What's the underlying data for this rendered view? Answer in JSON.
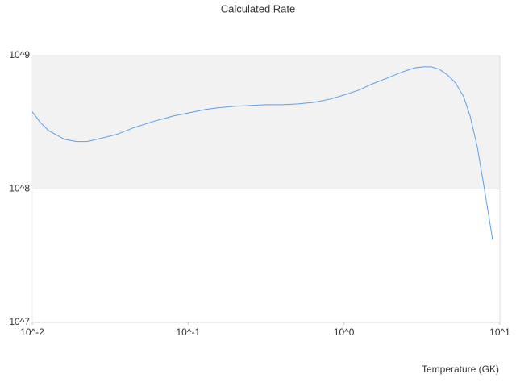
{
  "chart_data": {
    "type": "line",
    "title": "Calculated Rate",
    "x_label": "Temperature (GK)",
    "xscale": "log",
    "yscale": "log",
    "grid": true,
    "xlim": [
      0.01,
      10
    ],
    "ylim": [
      10000000,
      1000000000
    ],
    "xticks": [
      {
        "value": 0.01,
        "label": "10^-2"
      },
      {
        "value": 0.1,
        "label": "10^-1"
      },
      {
        "value": 1,
        "label": "10^0"
      },
      {
        "value": 10,
        "label": "10^1"
      }
    ],
    "yticks": [
      {
        "value": 10000000,
        "label": "10^7"
      },
      {
        "value": 100000000,
        "label": "10^8"
      },
      {
        "value": 1000000000,
        "label": "10^9"
      }
    ],
    "series": [
      {
        "color": "#5aa0e6",
        "x": [
          0.01,
          0.01126,
          0.01269,
          0.0161,
          0.01925,
          0.02247,
          0.02753,
          0.0349,
          0.0443,
          0.0597,
          0.0804,
          0.102,
          0.1294,
          0.1549,
          0.1964,
          0.2492,
          0.3162,
          0.4013,
          0.509,
          0.646,
          0.82,
          1.04,
          1.244,
          1.487,
          1.888,
          2.395,
          2.863,
          3.226,
          3.634,
          4.094,
          4.61,
          5.19,
          5.85,
          6.44,
          7.17,
          7.88,
          8.98
        ],
        "values": [
          379000000,
          316000000,
          275000000,
          236000000,
          227000000,
          227000000,
          240000000,
          257000000,
          287000000,
          321000000,
          353000000,
          373000000,
          395000000,
          406000000,
          417000000,
          423000000,
          429000000,
          429000000,
          435000000,
          447000000,
          473000000,
          514000000,
          551000000,
          607000000,
          678000000,
          758000000,
          812000000,
          824000000,
          824000000,
          790000000,
          717000000,
          624000000,
          493000000,
          353000000,
          206000000,
          107000000,
          41700000
        ]
      }
    ]
  }
}
